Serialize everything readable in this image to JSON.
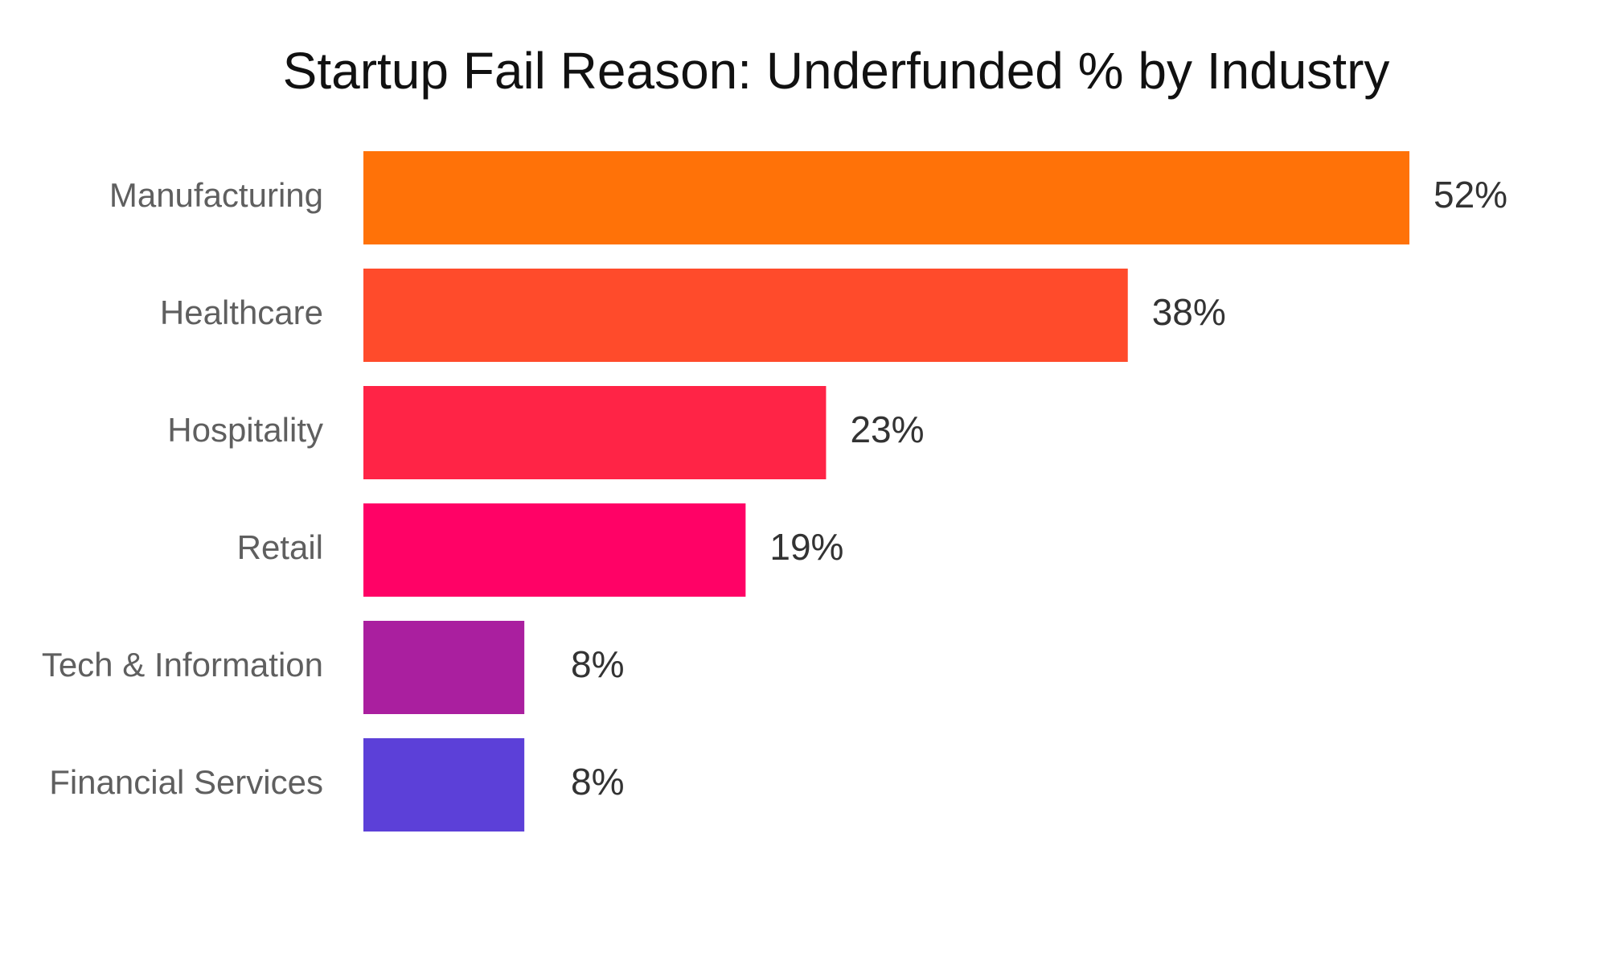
{
  "chart_data": {
    "type": "bar",
    "orientation": "horizontal",
    "title": "Startup Fail Reason: Underfunded % by Industry",
    "xlabel": "",
    "ylabel": "",
    "xlim": [
      0,
      52
    ],
    "grid": false,
    "legend": "none",
    "categories": [
      "Manufacturing",
      "Healthcare",
      "Hospitality",
      "Retail",
      "Tech & Information",
      "Financial Services"
    ],
    "values": [
      52,
      38,
      23,
      19,
      8,
      8
    ],
    "value_labels": [
      "52%",
      "38%",
      "23%",
      "19%",
      "8%",
      "8%"
    ],
    "colors": [
      "#FF7208",
      "#FF4B2B",
      "#FF2446",
      "#FF0266",
      "#AA1F9F",
      "#5C40D8"
    ]
  }
}
